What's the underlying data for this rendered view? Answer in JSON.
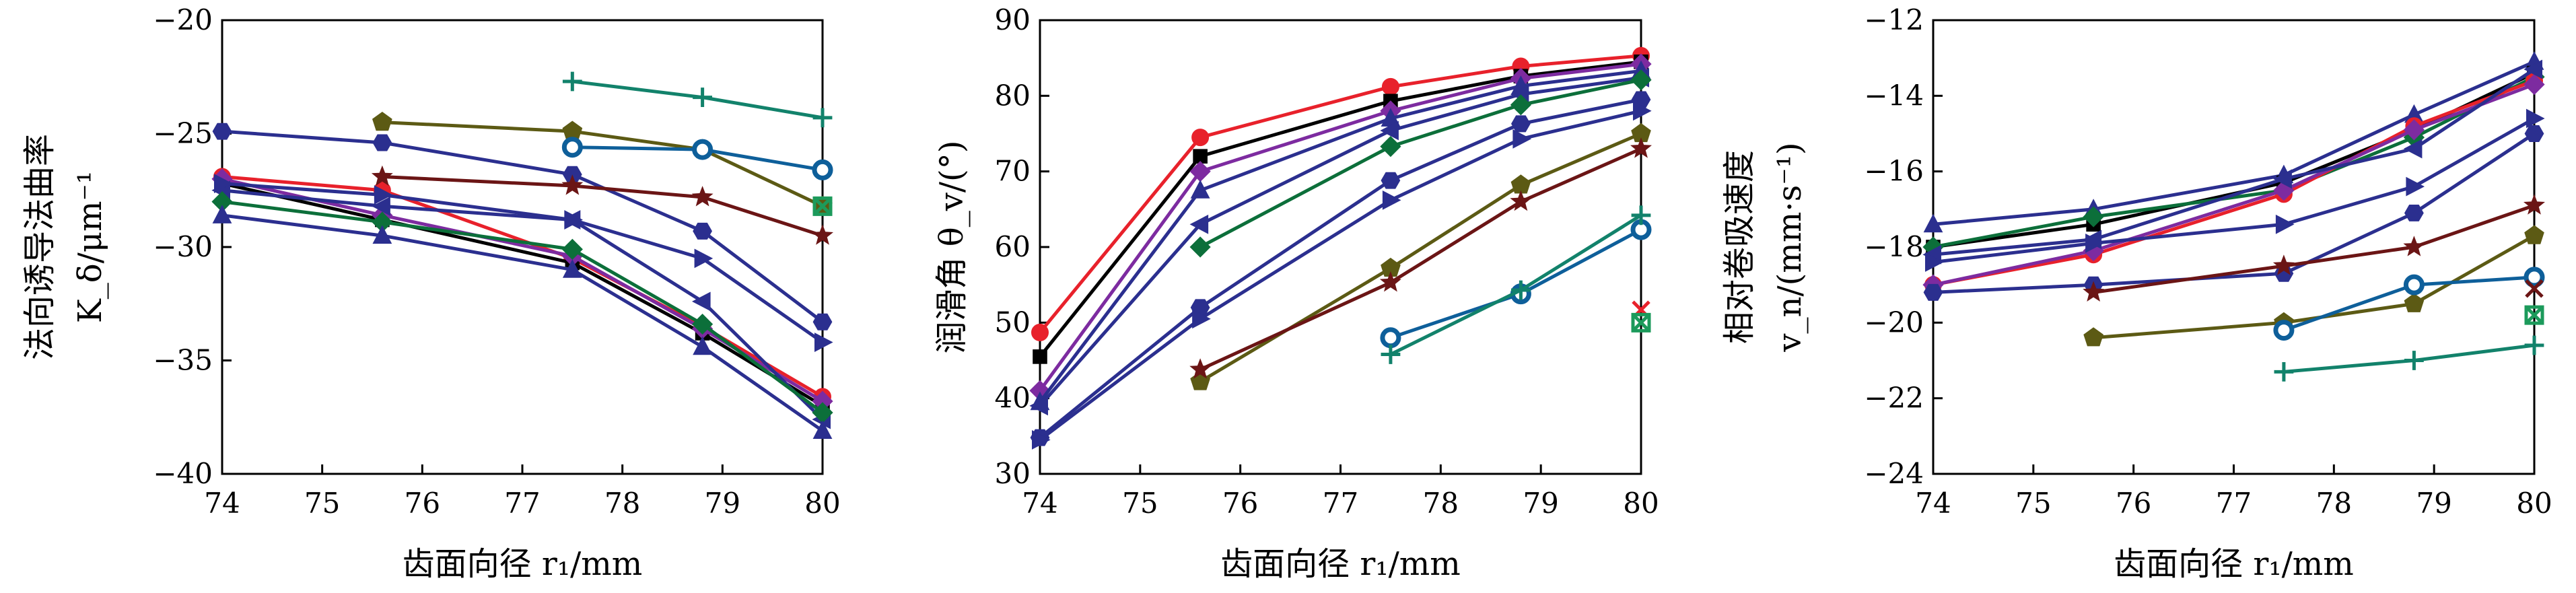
{
  "chart_data": [
    {
      "type": "line",
      "xlabel": "齿面向径 r₁/mm",
      "ylabel": [
        "法向诱导法曲率",
        "K_δ/μm⁻¹"
      ],
      "xlim": [
        74,
        80
      ],
      "ylim": [
        -40,
        -20
      ],
      "xticks": [
        "74",
        "75",
        "76",
        "77",
        "78",
        "79",
        "80"
      ],
      "yticks": [
        "-40",
        "-35",
        "-30",
        "-25",
        "-20"
      ],
      "x": [
        74,
        75.6,
        77.5,
        78.8,
        80
      ],
      "series": [
        {
          "color": "#e8212b",
          "marker": "circle",
          "values": [
            -26.9,
            -27.5,
            -30.5,
            -33.5,
            -36.6
          ]
        },
        {
          "color": "#000000",
          "marker": "square",
          "values": [
            -27.2,
            -28.8,
            -30.7,
            -33.8,
            -37.0
          ]
        },
        {
          "color": "#7d2ba0",
          "marker": "diamond",
          "values": [
            -27.0,
            -28.6,
            -30.4,
            -33.6,
            -36.8
          ]
        },
        {
          "color": "#2b2f8f",
          "marker": "triangle-left",
          "values": [
            -27.5,
            -28.2,
            -28.8,
            -32.4,
            -37.6
          ]
        },
        {
          "color": "#0c6f3a",
          "marker": "diamond",
          "values": [
            -28.0,
            -28.9,
            -30.1,
            -33.4,
            -37.3
          ]
        },
        {
          "color": "#2b2f8f",
          "marker": "triangle-up",
          "values": [
            -28.6,
            -29.5,
            -31.0,
            -34.4,
            -38.1
          ]
        },
        {
          "color": "#2b2f8f",
          "marker": "triangle-right",
          "values": [
            -27.2,
            -27.7,
            -28.8,
            -30.5,
            -34.2
          ]
        },
        {
          "color": "#2b2f8f",
          "marker": "hexagon",
          "values": [
            -24.9,
            -25.4,
            -26.8,
            -29.3,
            -33.3
          ]
        },
        {
          "color": "#6b1515",
          "marker": "star",
          "values": [
            null,
            -26.9,
            -27.3,
            -27.8,
            -29.5
          ]
        },
        {
          "color": "#5c5a14",
          "marker": "pentagon",
          "values": [
            null,
            -24.5,
            -24.9,
            -25.7,
            -28.2
          ]
        },
        {
          "color": "#0e5f9a",
          "marker": "circle-dot",
          "values": [
            null,
            null,
            -25.6,
            -25.7,
            -26.6
          ]
        },
        {
          "color": "#12826b",
          "marker": "plus",
          "values": [
            null,
            null,
            -22.7,
            -23.4,
            -24.3
          ]
        },
        {
          "color": "#1c9a5b",
          "marker": "x-square",
          "values": [
            null,
            null,
            null,
            null,
            -28.2
          ]
        }
      ]
    },
    {
      "type": "line",
      "xlabel": "齿面向径 r₁/mm",
      "ylabel": [
        "润滑角 θ_v/(°)"
      ],
      "xlim": [
        74,
        80
      ],
      "ylim": [
        30,
        90
      ],
      "xticks": [
        "74",
        "75",
        "76",
        "77",
        "78",
        "79",
        "80"
      ],
      "yticks": [
        "30",
        "40",
        "50",
        "60",
        "70",
        "80",
        "90"
      ],
      "x": [
        74,
        75.6,
        77.5,
        78.8,
        80
      ],
      "series": [
        {
          "color": "#e8212b",
          "marker": "circle",
          "values": [
            48.7,
            74.5,
            81.2,
            83.9,
            85.3
          ]
        },
        {
          "color": "#000000",
          "marker": "square",
          "values": [
            45.5,
            72.0,
            79.3,
            82.6,
            84.5
          ]
        },
        {
          "color": "#7d2ba0",
          "marker": "diamond",
          "values": [
            41.0,
            70.0,
            78.0,
            82.3,
            84.2
          ]
        },
        {
          "color": "#2b2f8f",
          "marker": "triangle-up",
          "values": [
            39.5,
            67.5,
            77.0,
            81.3,
            83.3
          ]
        },
        {
          "color": "#2b2f8f",
          "marker": "triangle-left",
          "values": [
            39.0,
            63.0,
            75.4,
            80.2,
            82.4
          ]
        },
        {
          "color": "#0c6f3a",
          "marker": "diamond",
          "values": [
            null,
            60.0,
            73.3,
            78.8,
            82.1
          ]
        },
        {
          "color": "#2b2f8f",
          "marker": "hexagon",
          "values": [
            34.8,
            52.0,
            68.8,
            76.3,
            79.5
          ]
        },
        {
          "color": "#2b2f8f",
          "marker": "triangle-right",
          "values": [
            34.5,
            50.5,
            66.2,
            74.3,
            78.0
          ]
        },
        {
          "color": "#5c5a14",
          "marker": "pentagon",
          "values": [
            null,
            42.2,
            57.2,
            68.2,
            75.0
          ]
        },
        {
          "color": "#6b1515",
          "marker": "star",
          "values": [
            null,
            43.8,
            55.3,
            66.0,
            73.0
          ]
        },
        {
          "color": "#0e5f9a",
          "marker": "circle-dot",
          "values": [
            null,
            null,
            48.0,
            53.8,
            62.3
          ]
        },
        {
          "color": "#12826b",
          "marker": "plus",
          "values": [
            null,
            null,
            45.8,
            54.3,
            64.2
          ]
        },
        {
          "color": "#e8212b",
          "marker": "x",
          "values": [
            null,
            null,
            null,
            null,
            51.7
          ]
        },
        {
          "color": "#1c9a5b",
          "marker": "x-square",
          "values": [
            null,
            null,
            null,
            null,
            50.0
          ]
        }
      ]
    },
    {
      "type": "line",
      "xlabel": "齿面向径 r₁/mm",
      "ylabel": [
        "相对卷吸速度",
        "v_n/(mm·s⁻¹)"
      ],
      "xlim": [
        74,
        80
      ],
      "ylim": [
        -24,
        -12
      ],
      "xticks": [
        "74",
        "75",
        "76",
        "77",
        "78",
        "79",
        "80"
      ],
      "yticks": [
        "-24",
        "-22",
        "-20",
        "-18",
        "-16",
        "-14",
        "-12"
      ],
      "x": [
        74,
        75.6,
        77.5,
        78.8,
        80
      ],
      "series": [
        {
          "color": "#2b2f8f",
          "marker": "triangle-up",
          "values": [
            -17.4,
            -17.0,
            -16.1,
            -14.5,
            -13.1
          ]
        },
        {
          "color": "#000000",
          "marker": "square",
          "values": [
            -18.0,
            -17.4,
            -16.3,
            -14.9,
            -13.4
          ]
        },
        {
          "color": "#0c6f3a",
          "marker": "diamond",
          "values": [
            -18.0,
            -17.2,
            -16.5,
            -15.1,
            -13.5
          ]
        },
        {
          "color": "#e8212b",
          "marker": "circle",
          "values": [
            -19.0,
            -18.2,
            -16.6,
            -14.8,
            -13.6
          ]
        },
        {
          "color": "#7d2ba0",
          "marker": "diamond",
          "values": [
            -19.0,
            -18.1,
            -16.5,
            -14.9,
            -13.7
          ]
        },
        {
          "color": "#2b2f8f",
          "marker": "triangle-left",
          "values": [
            -18.2,
            -17.8,
            -16.2,
            -15.4,
            -13.3
          ]
        },
        {
          "color": "#2b2f8f",
          "marker": "triangle-right",
          "values": [
            -18.4,
            -17.9,
            -17.4,
            -16.4,
            -14.6
          ]
        },
        {
          "color": "#2b2f8f",
          "marker": "hexagon",
          "values": [
            -19.2,
            -19.0,
            -18.7,
            -17.1,
            -15.0
          ]
        },
        {
          "color": "#6b1515",
          "marker": "star",
          "values": [
            null,
            -19.2,
            -18.5,
            -18.0,
            -16.9
          ]
        },
        {
          "color": "#5c5a14",
          "marker": "pentagon",
          "values": [
            null,
            -20.4,
            -20.0,
            -19.5,
            -17.7
          ]
        },
        {
          "color": "#0e5f9a",
          "marker": "circle-dot",
          "values": [
            null,
            null,
            -20.2,
            -19.0,
            -18.8
          ]
        },
        {
          "color": "#12826b",
          "marker": "plus",
          "values": [
            null,
            null,
            -21.3,
            -21.0,
            -20.6
          ]
        },
        {
          "color": "#6b1515",
          "marker": "x",
          "values": [
            null,
            null,
            null,
            null,
            -19.1
          ]
        },
        {
          "color": "#1c9a5b",
          "marker": "x-square",
          "values": [
            null,
            null,
            null,
            null,
            -19.8
          ]
        }
      ]
    }
  ]
}
